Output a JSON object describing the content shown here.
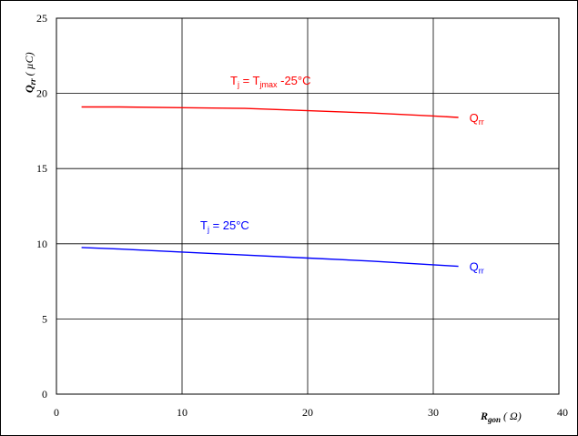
{
  "chart_data": {
    "type": "line",
    "x_axis": {
      "label_main": "R",
      "label_sub": "gon",
      "label_unit": "( Ω)",
      "min": 0,
      "max": 40,
      "ticks": [
        "0",
        "10",
        "20",
        "30",
        "40"
      ]
    },
    "y_axis": {
      "label_main": "Q",
      "label_sub": "rr",
      "label_unit": "( µC)",
      "min": 0,
      "max": 25,
      "ticks": [
        "0",
        "5",
        "10",
        "15",
        "20",
        "25"
      ]
    },
    "grid": true,
    "series": [
      {
        "name": "Qrr",
        "color": "#ff0000",
        "x": [
          2,
          5,
          10,
          15,
          20,
          25,
          30,
          32
        ],
        "y": [
          19.1,
          19.1,
          19.05,
          19.0,
          18.85,
          18.7,
          18.5,
          18.4
        ],
        "end_label_main": "Q",
        "end_label_sub": "rr",
        "condition": {
          "t": "T",
          "t_sub": "j",
          "eq": " = T",
          "eq_sub": "jmax",
          "rest": " -25°C"
        }
      },
      {
        "name": "Qrr",
        "color": "#0000ff",
        "x": [
          2,
          5,
          10,
          15,
          20,
          25,
          30,
          32
        ],
        "y": [
          9.75,
          9.65,
          9.45,
          9.25,
          9.05,
          8.85,
          8.6,
          8.5
        ],
        "end_label_main": "Q",
        "end_label_sub": "rr",
        "condition": {
          "t": "T",
          "t_sub": "j",
          "eq": " = 25°C",
          "eq_sub": "",
          "rest": ""
        }
      }
    ]
  }
}
